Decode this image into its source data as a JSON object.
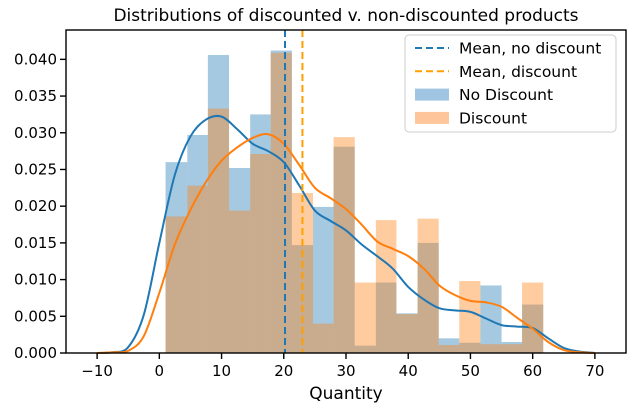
{
  "chart_data": {
    "type": "histogram+kde",
    "title": "Distributions of discounted v. non-discounted products",
    "xlabel": "Quantity",
    "ylabel": "",
    "xlim": [
      -15,
      75
    ],
    "ylim": [
      0,
      0.044
    ],
    "x_ticks": [
      -10,
      0,
      10,
      20,
      30,
      40,
      50,
      60,
      70
    ],
    "x_tick_labels": [
      "−10",
      "0",
      "10",
      "20",
      "30",
      "40",
      "50",
      "60",
      "70"
    ],
    "y_ticks": [
      0,
      0.005,
      0.01,
      0.015,
      0.02,
      0.025,
      0.03,
      0.035,
      0.04
    ],
    "y_tick_labels": [
      "0.000",
      "0.005",
      "0.010",
      "0.015",
      "0.020",
      "0.025",
      "0.030",
      "0.035",
      "0.040"
    ],
    "grid": false,
    "legend_position": "top-right",
    "legend": [
      {
        "label": "Mean, no discount",
        "kind": "dashed-line",
        "color": "#1f77b4"
      },
      {
        "label": "Mean, discount",
        "kind": "dashed-line",
        "color": "#ff9f00"
      },
      {
        "label": "No Discount",
        "kind": "patch",
        "color": "#9fc5e2"
      },
      {
        "label": "Discount",
        "kind": "patch",
        "color": "#ffc59a"
      }
    ],
    "histogram_bins": [
      [
        1.0,
        4.5
      ],
      [
        4.5,
        7.8
      ],
      [
        7.8,
        11.2
      ],
      [
        11.2,
        14.6
      ],
      [
        14.6,
        17.9
      ],
      [
        17.9,
        21.3
      ],
      [
        21.3,
        24.7
      ],
      [
        24.7,
        28.0
      ],
      [
        28.0,
        31.4
      ],
      [
        31.4,
        34.8
      ],
      [
        34.8,
        38.1
      ],
      [
        38.1,
        41.5
      ],
      [
        41.5,
        44.9
      ],
      [
        44.9,
        48.2
      ],
      [
        48.2,
        51.6
      ],
      [
        51.6,
        55.0
      ],
      [
        55.0,
        58.3
      ],
      [
        58.3,
        61.7
      ]
    ],
    "series": [
      {
        "name": "No Discount",
        "color": "#1f77b4",
        "hist_color": "#9fc5e2",
        "hist_values": [
          0.026,
          0.0297,
          0.0406,
          0.0252,
          0.0325,
          0.0412,
          0.0147,
          0.0199,
          0.0281,
          0.001,
          0.0096,
          0.0054,
          0.015,
          0.002,
          0.0014,
          0.0092,
          0.0015,
          0.0066
        ],
        "kde_x": [
          -10,
          -7.5,
          -5,
          -2.5,
          0,
          2.5,
          5,
          7.5,
          10,
          12.5,
          15,
          17.5,
          20,
          22.5,
          25,
          27.5,
          30,
          32.5,
          35,
          37.5,
          40,
          42.5,
          45,
          47.5,
          50,
          52.5,
          55,
          57.5,
          60,
          62.5,
          65,
          67.5,
          70
        ],
        "kde_y": [
          0.0,
          0.0001,
          0.0008,
          0.0052,
          0.015,
          0.0243,
          0.0295,
          0.0318,
          0.0322,
          0.0305,
          0.0285,
          0.0275,
          0.026,
          0.0228,
          0.0194,
          0.018,
          0.0167,
          0.0148,
          0.0132,
          0.0115,
          0.009,
          0.0073,
          0.0061,
          0.0058,
          0.0056,
          0.0047,
          0.0038,
          0.0036,
          0.0034,
          0.002,
          0.0007,
          0.0002,
          0.0
        ]
      },
      {
        "name": "Discount",
        "color": "#ff7f0e",
        "hist_color": "#ffc59a",
        "hist_values": [
          0.0186,
          0.0228,
          0.0333,
          0.0194,
          0.0271,
          0.0409,
          0.0218,
          0.004,
          0.0294,
          0.0096,
          0.0181,
          0.0053,
          0.0183,
          0.0011,
          0.0098,
          0.0012,
          0.0012,
          0.0096
        ],
        "kde_x": [
          -10,
          -7.5,
          -5,
          -2.5,
          0,
          2.5,
          5,
          7.5,
          10,
          12.5,
          15,
          17.5,
          20,
          22.5,
          25,
          27.5,
          30,
          32.5,
          35,
          37.5,
          40,
          42.5,
          45,
          47.5,
          50,
          52.5,
          55,
          57.5,
          60,
          62.5,
          65,
          67.5,
          70
        ],
        "kde_y": [
          0.0,
          0.0001,
          0.0003,
          0.0023,
          0.0082,
          0.0148,
          0.0195,
          0.0233,
          0.0262,
          0.028,
          0.0293,
          0.0298,
          0.0285,
          0.0256,
          0.0225,
          0.0211,
          0.0196,
          0.0175,
          0.0152,
          0.0142,
          0.0132,
          0.0115,
          0.0092,
          0.0079,
          0.0071,
          0.0069,
          0.0063,
          0.0048,
          0.0033,
          0.0015,
          0.0004,
          0.0001,
          0.0
        ]
      }
    ],
    "mean_lines": [
      {
        "name": "Mean, no discount",
        "x": 20.2,
        "color": "#1f77b4"
      },
      {
        "name": "Mean, discount",
        "x": 23.0,
        "color": "#ff9f00"
      }
    ]
  }
}
